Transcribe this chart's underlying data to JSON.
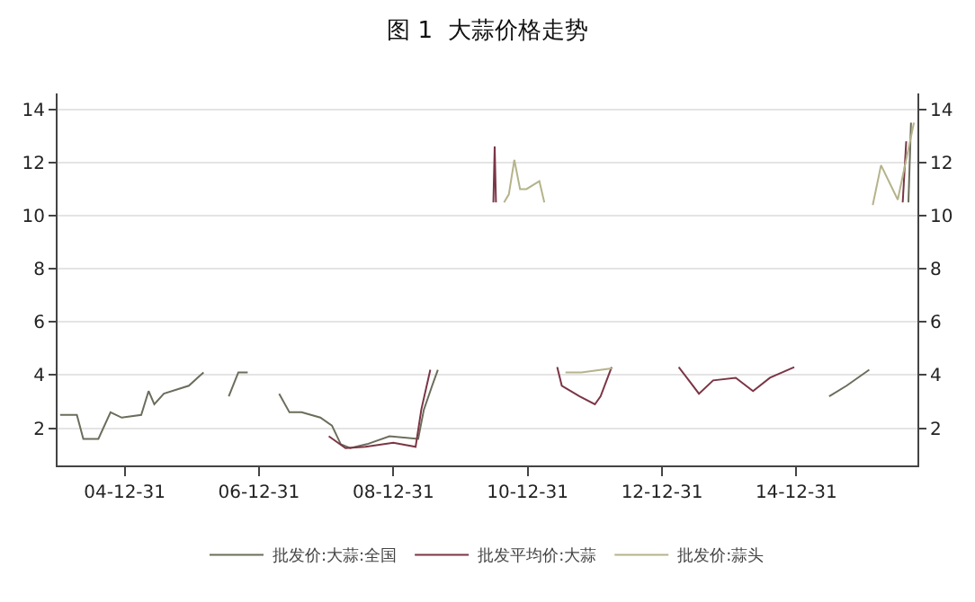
{
  "chart_data": {
    "type": "line",
    "title": "图 1  大蒜价格走势",
    "grid": "y",
    "legend": "bottom",
    "marker": "none",
    "line_style": "solid",
    "xlim": [
      "2004-01-01",
      "2016-10-20"
    ],
    "xticks": [
      {
        "value": "2004-12-31",
        "label": "04-12-31"
      },
      {
        "value": "2006-12-31",
        "label": "06-12-31"
      },
      {
        "value": "2008-12-31",
        "label": "08-12-31"
      },
      {
        "value": "2010-12-31",
        "label": "10-12-31"
      },
      {
        "value": "2012-12-31",
        "label": "12-12-31"
      },
      {
        "value": "2014-12-31",
        "label": "14-12-31"
      }
    ],
    "ylim": [
      0.6,
      14.6
    ],
    "yticks": [
      2,
      4,
      6,
      8,
      10,
      12,
      14
    ],
    "y2lim": [
      0.6,
      14.6
    ],
    "y2ticks": [
      2,
      4,
      6,
      8,
      10,
      12,
      14
    ],
    "series": [
      {
        "name": "批发价:大蒜:全国",
        "color": "#6b6d5b",
        "x": [
          "2004-01-15",
          "2004-04-15",
          "2004-05-20",
          "2004-08-10",
          "2004-10-15",
          "2004-12-15",
          "2005-03-31",
          "2005-05-10",
          "2005-06-10",
          "2005-08-01",
          "2005-12-15",
          "2006-01-31",
          "2006-03-05",
          "2006-04-15",
          "2006-07-20",
          "2006-09-10",
          "2006-10-31",
          "2006-11-30",
          "2007-04-20",
          "2007-06-15",
          "2007-08-20",
          "2007-11-30",
          "2008-02-01",
          "2008-03-20",
          "2008-05-10",
          "2008-08-10",
          "2008-12-10",
          "2009-05-15",
          "2009-06-15",
          "2009-07-30",
          "2009-08-30",
          "2009-09-30",
          "2015-06-28",
          "2015-10-01",
          "2016-02-01",
          "2016-03-01",
          "2016-09-01",
          "2016-09-15"
        ],
        "values": [
          2.5,
          2.5,
          1.6,
          1.6,
          2.6,
          2.4,
          2.5,
          3.4,
          2.9,
          3.3,
          3.6,
          3.9,
          4.1,
          null,
          3.2,
          4.1,
          4.1,
          null,
          3.3,
          2.6,
          2.6,
          2.4,
          2.1,
          1.4,
          1.25,
          1.4,
          1.7,
          1.6,
          2.7,
          3.6,
          4.2,
          null,
          3.2,
          3.6,
          4.2,
          null,
          10.5,
          13.5
        ]
      },
      {
        "name": "批发平均价:大蒜",
        "color": "#7b3546",
        "x": [
          "2008-01-15",
          "2008-04-15",
          "2008-08-01",
          "2008-12-31",
          "2009-05-01",
          "2009-06-01",
          "2009-07-20",
          "2009-08-10",
          "2010-06-28",
          "2010-07-05",
          "2010-07-12",
          "2010-07-20",
          "2011-06-10",
          "2011-07-05",
          "2011-10-10",
          "2012-01-01",
          "2012-02-01",
          "2012-04-01",
          "2012-05-01",
          "2013-04-01",
          "2013-05-15",
          "2013-07-20",
          "2013-10-05",
          "2014-02-05",
          "2014-05-10",
          "2014-08-10",
          "2014-12-20",
          "2015-01-15",
          "2016-08-01",
          "2016-08-20"
        ],
        "values": [
          1.7,
          1.25,
          1.3,
          1.45,
          1.3,
          2.7,
          4.2,
          null,
          10.5,
          12.6,
          10.5,
          null,
          4.3,
          3.6,
          3.2,
          2.9,
          3.2,
          4.3,
          null,
          4.3,
          3.9,
          3.3,
          3.8,
          3.9,
          3.4,
          3.9,
          4.3,
          null,
          10.5,
          12.8
        ]
      },
      {
        "name": "批发价:蒜头",
        "color": "#b5b38a",
        "x": [
          "2010-08-25",
          "2010-09-20",
          "2010-10-20",
          "2010-11-20",
          "2010-12-25",
          "2011-03-05",
          "2011-04-01",
          "2011-04-15",
          "2011-07-25",
          "2011-10-20",
          "2012-04-01",
          "2012-04-20",
          "2016-02-20",
          "2016-04-05",
          "2016-07-05",
          "2016-10-01"
        ],
        "values": [
          10.5,
          10.8,
          12.1,
          11.0,
          11.0,
          11.3,
          10.5,
          null,
          4.1,
          4.1,
          4.25,
          null,
          10.4,
          11.9,
          10.6,
          13.5
        ]
      }
    ]
  }
}
